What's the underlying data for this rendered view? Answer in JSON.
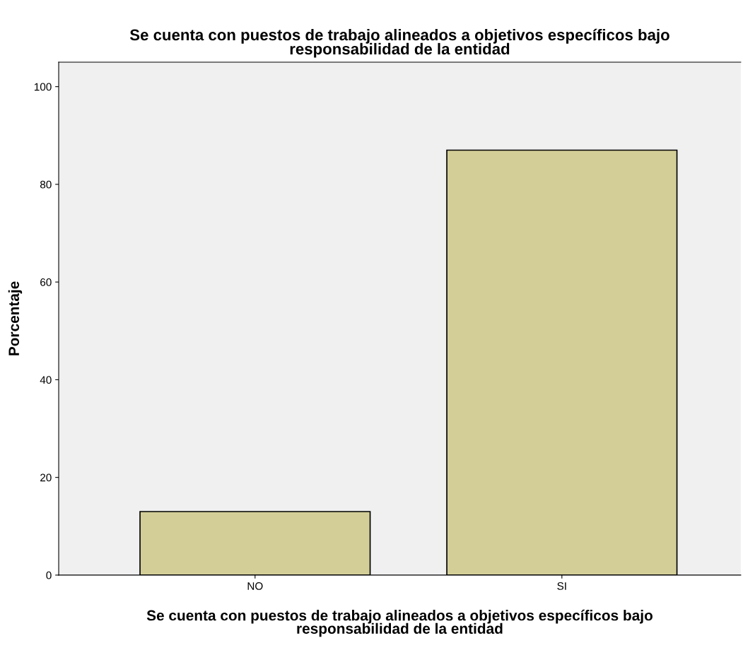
{
  "chart_data": {
    "type": "bar",
    "title": "Se cuenta con puestos de trabajo alineados a objetivos específicos bajo\nresponsabilidad de la entidad",
    "xlabel": "Se cuenta con puestos de trabajo alineados a objetivos específicos bajo\nresponsabilidad de la entidad",
    "ylabel": "Porcentaje",
    "categories": [
      "NO",
      "SI"
    ],
    "values": [
      13,
      87
    ],
    "color": "#d3ce97",
    "ylim": [
      0,
      105
    ],
    "yticks": [
      0,
      20,
      40,
      60,
      80,
      100
    ],
    "grid": false
  }
}
